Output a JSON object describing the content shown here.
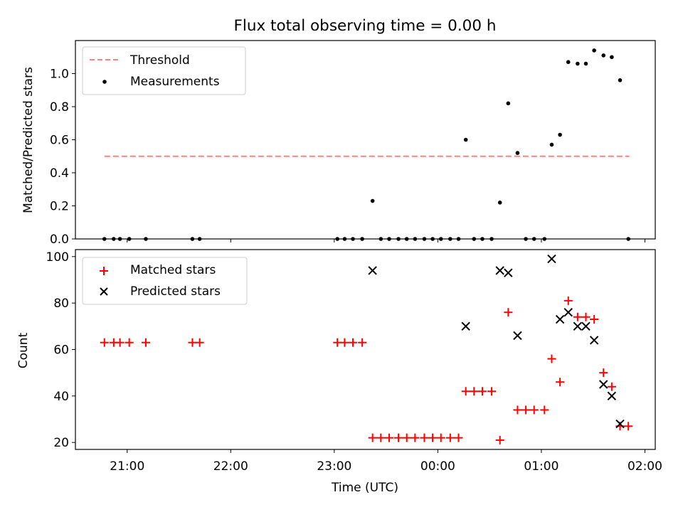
{
  "chart_data": [
    {
      "type": "scatter",
      "title": "Flux total observing time = 0.00 h",
      "xlabel": "",
      "ylabel": "Matched/Predicted stars",
      "ylim": [
        0,
        1.2
      ],
      "yticks": [
        "0.0",
        "0.2",
        "0.4",
        "0.6",
        "0.8",
        "1.0"
      ],
      "xlim_hours": [
        20.5,
        26.1
      ],
      "legend_position": "top-left",
      "threshold": {
        "name": "Threshold",
        "value": 0.5,
        "x_start": 20.78,
        "x_end": 25.85,
        "color": "#ff8080"
      },
      "series": [
        {
          "name": "Measurements",
          "color": "#000000",
          "marker": "dot",
          "points": [
            [
              20.78,
              0
            ],
            [
              20.87,
              0
            ],
            [
              20.93,
              0
            ],
            [
              21.02,
              0
            ],
            [
              21.18,
              0
            ],
            [
              21.63,
              0
            ],
            [
              21.7,
              0
            ],
            [
              23.03,
              0
            ],
            [
              23.1,
              0
            ],
            [
              23.18,
              0
            ],
            [
              23.27,
              0
            ],
            [
              23.37,
              0.23
            ],
            [
              23.45,
              0
            ],
            [
              23.53,
              0
            ],
            [
              23.62,
              0
            ],
            [
              23.7,
              0
            ],
            [
              23.78,
              0
            ],
            [
              23.87,
              0
            ],
            [
              23.95,
              0
            ],
            [
              24.03,
              0
            ],
            [
              24.12,
              0
            ],
            [
              24.2,
              0
            ],
            [
              24.27,
              0.6
            ],
            [
              24.35,
              0
            ],
            [
              24.43,
              0
            ],
            [
              24.52,
              0
            ],
            [
              24.6,
              0.22
            ],
            [
              24.68,
              0.82
            ],
            [
              24.77,
              0.52
            ],
            [
              24.85,
              0
            ],
            [
              24.93,
              0
            ],
            [
              25.03,
              0
            ],
            [
              25.1,
              0.57
            ],
            [
              25.18,
              0.63
            ],
            [
              25.26,
              1.07
            ],
            [
              25.35,
              1.06
            ],
            [
              25.43,
              1.06
            ],
            [
              25.51,
              1.14
            ],
            [
              25.6,
              1.11
            ],
            [
              25.68,
              1.1
            ],
            [
              25.76,
              0.96
            ],
            [
              25.84,
              0
            ]
          ]
        }
      ]
    },
    {
      "type": "scatter",
      "title": "",
      "xlabel": "Time (UTC)",
      "ylabel": "Count",
      "ylim": [
        17,
        103
      ],
      "yticks": [
        "20",
        "40",
        "60",
        "80",
        "100"
      ],
      "xlim_hours": [
        20.5,
        26.1
      ],
      "xticks": [
        "21:00",
        "22:00",
        "23:00",
        "00:00",
        "01:00",
        "02:00"
      ],
      "legend_position": "top-left",
      "series": [
        {
          "name": "Matched stars",
          "color": "#ff0000",
          "marker": "plus",
          "points": [
            [
              20.78,
              63
            ],
            [
              20.87,
              63
            ],
            [
              20.93,
              63
            ],
            [
              21.02,
              63
            ],
            [
              21.18,
              63
            ],
            [
              21.63,
              63
            ],
            [
              21.7,
              63
            ],
            [
              23.03,
              63
            ],
            [
              23.1,
              63
            ],
            [
              23.18,
              63
            ],
            [
              23.27,
              63
            ],
            [
              23.37,
              22
            ],
            [
              23.45,
              22
            ],
            [
              23.53,
              22
            ],
            [
              23.62,
              22
            ],
            [
              23.7,
              22
            ],
            [
              23.78,
              22
            ],
            [
              23.87,
              22
            ],
            [
              23.95,
              22
            ],
            [
              24.03,
              22
            ],
            [
              24.12,
              22
            ],
            [
              24.2,
              22
            ],
            [
              24.27,
              42
            ],
            [
              24.35,
              42
            ],
            [
              24.43,
              42
            ],
            [
              24.52,
              42
            ],
            [
              24.6,
              21
            ],
            [
              24.68,
              76
            ],
            [
              24.77,
              34
            ],
            [
              24.85,
              34
            ],
            [
              24.93,
              34
            ],
            [
              25.03,
              34
            ],
            [
              25.1,
              56
            ],
            [
              25.18,
              46
            ],
            [
              25.26,
              81
            ],
            [
              25.35,
              74
            ],
            [
              25.43,
              74
            ],
            [
              25.51,
              73
            ],
            [
              25.6,
              50
            ],
            [
              25.68,
              44
            ],
            [
              25.76,
              27
            ],
            [
              25.84,
              27
            ]
          ]
        },
        {
          "name": "Predicted stars",
          "color": "#000000",
          "marker": "x",
          "points": [
            [
              23.37,
              94
            ],
            [
              24.27,
              70
            ],
            [
              24.6,
              94
            ],
            [
              24.68,
              93
            ],
            [
              24.77,
              66
            ],
            [
              25.1,
              99
            ],
            [
              25.18,
              73
            ],
            [
              25.26,
              76
            ],
            [
              25.35,
              70
            ],
            [
              25.43,
              70
            ],
            [
              25.51,
              64
            ],
            [
              25.6,
              45
            ],
            [
              25.68,
              40
            ],
            [
              25.76,
              28
            ]
          ]
        }
      ]
    }
  ]
}
